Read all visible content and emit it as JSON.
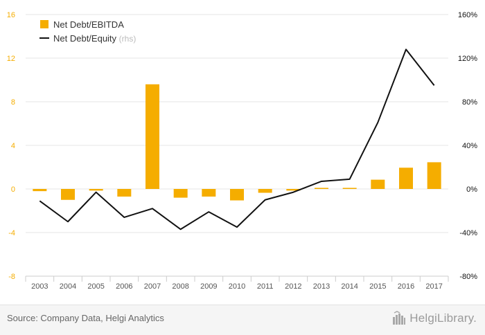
{
  "chart_data": {
    "type": "bar",
    "categories": [
      "2003",
      "2004",
      "2005",
      "2006",
      "2007",
      "2008",
      "2009",
      "2010",
      "2011",
      "2012",
      "2013",
      "2014",
      "2015",
      "2016",
      "2017"
    ],
    "series": [
      {
        "name": "Net Debt/EBITDA",
        "type": "bar",
        "axis": "left",
        "color": "#f5ad00",
        "values": [
          -0.2,
          -1.0,
          -0.15,
          -0.7,
          9.6,
          -0.8,
          -0.7,
          -1.05,
          -0.35,
          -0.15,
          0.1,
          0.1,
          0.85,
          1.95,
          2.45
        ]
      },
      {
        "name": "Net Debt/Equity",
        "type": "line",
        "axis": "right",
        "color": "#111111",
        "values": [
          -11,
          -30,
          -3,
          -26,
          -18,
          -37,
          -21,
          -35,
          -10,
          -3,
          7,
          9,
          61,
          128,
          95
        ]
      }
    ],
    "legend": {
      "rhs_suffix": "(rhs)"
    },
    "left_axis": {
      "ylim": [
        -8,
        16
      ],
      "ticks": [
        "-8",
        "-4",
        "0",
        "4",
        "8",
        "12",
        "16"
      ],
      "color": "#f5ad00"
    },
    "right_axis": {
      "ylim": [
        -80,
        160
      ],
      "ticks": [
        "-80%",
        "-40%",
        "0%",
        "40%",
        "80%",
        "120%",
        "160%"
      ]
    },
    "grid": true,
    "legend_position": "top-left"
  },
  "footer": {
    "source": "Source: Company Data, Helgi Analytics",
    "brand": "HelgiLibrary."
  }
}
